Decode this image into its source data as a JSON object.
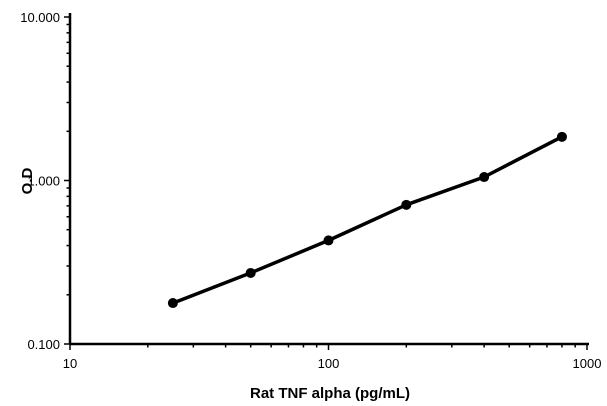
{
  "chart_data": {
    "type": "line",
    "title": "",
    "xlabel": "Rat TNF alpha (pg/mL)",
    "ylabel": "O.D",
    "x_scale": "log",
    "y_scale": "log",
    "xlim": [
      10,
      1000
    ],
    "ylim": [
      0.1,
      10
    ],
    "x_ticks": [
      10,
      100,
      1000
    ],
    "x_tick_labels": [
      "10",
      "100",
      "1000"
    ],
    "y_ticks": [
      0.1,
      1,
      10
    ],
    "y_tick_labels": [
      "0.100",
      "1.000",
      "10.000"
    ],
    "grid": false,
    "legend": "none",
    "series": [
      {
        "x": [
          25,
          50,
          100,
          200,
          400,
          800
        ],
        "y": [
          0.178,
          0.272,
          0.43,
          0.71,
          1.05,
          1.85
        ],
        "color": "#000000",
        "marker": "circle"
      }
    ]
  }
}
